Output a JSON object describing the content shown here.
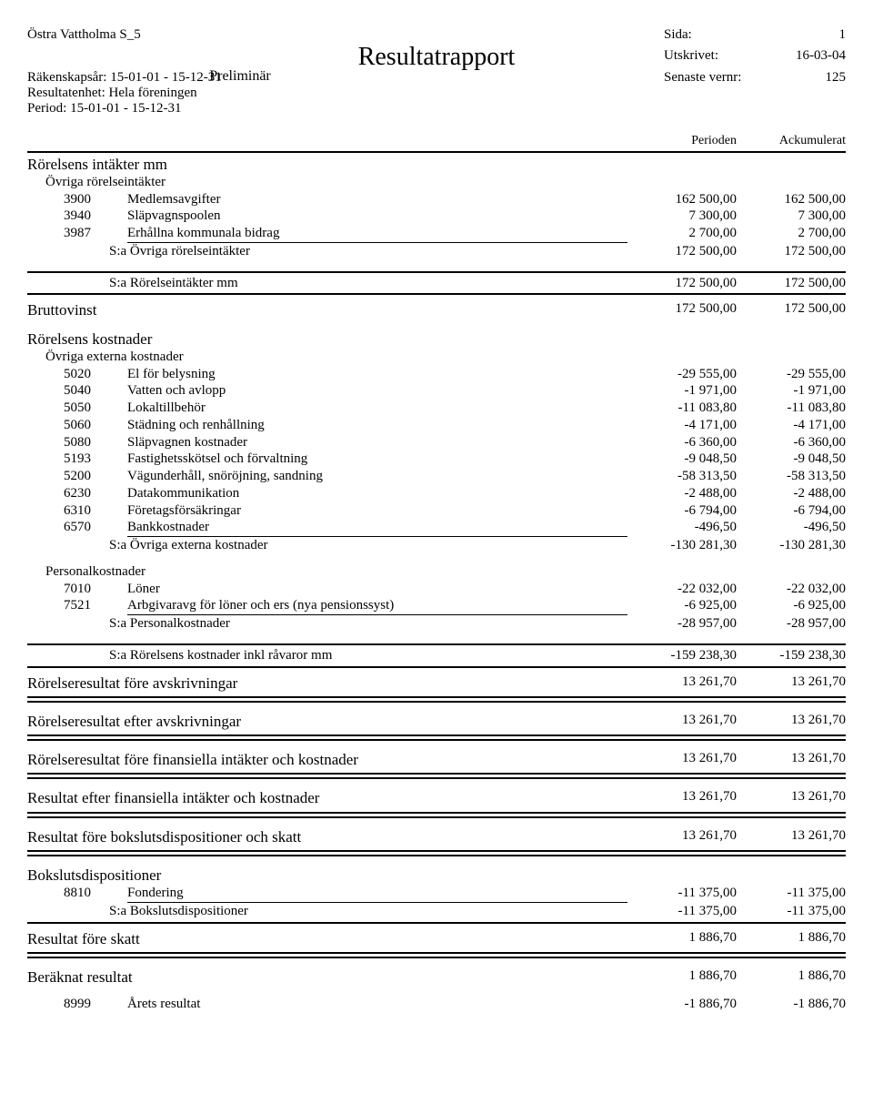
{
  "header": {
    "company": "Östra Vattholma S_5",
    "rakenskapsar_label": "Räkenskapsår: 15-01-01 - 15-12-31",
    "resultatenhet": "Resultatenhet: Hela föreningen",
    "period": "Period: 15-01-01 - 15-12-31",
    "sida_label": "Sida:",
    "sida_val": "1",
    "utskrivet_label": "Utskrivet:",
    "utskrivet_val": "16-03-04",
    "vernr_label": "Senaste vernr:",
    "vernr_val": "125",
    "title": "Resultatrapport",
    "subtitle": "Preliminär"
  },
  "colheads": {
    "period": "Perioden",
    "ack": "Ackumulerat"
  },
  "sections": {
    "intakter": {
      "title": "Rörelsens intäkter mm",
      "ovriga_title": "Övriga rörelseintäkter",
      "rows": [
        {
          "code": "3900",
          "desc": "Medlemsavgifter",
          "p": "162 500,00",
          "a": "162 500,00"
        },
        {
          "code": "3940",
          "desc": "Släpvagnspoolen",
          "p": "7 300,00",
          "a": "7 300,00"
        },
        {
          "code": "3987",
          "desc": "Erhållna kommunala bidrag",
          "p": "2 700,00",
          "a": "2 700,00"
        }
      ],
      "sum_ovriga": {
        "desc": "S:a Övriga rörelseintäkter",
        "p": "172 500,00",
        "a": "172 500,00"
      },
      "sum_intakter": {
        "desc": "S:a Rörelseintäkter mm",
        "p": "172 500,00",
        "a": "172 500,00"
      }
    },
    "bruttovinst": {
      "label": "Bruttovinst",
      "p": "172 500,00",
      "a": "172 500,00"
    },
    "kostnader": {
      "title": "Rörelsens kostnader",
      "ovriga_title": "Övriga externa kostnader",
      "rows": [
        {
          "code": "5020",
          "desc": "El för belysning",
          "p": "-29 555,00",
          "a": "-29 555,00"
        },
        {
          "code": "5040",
          "desc": "Vatten och avlopp",
          "p": "-1 971,00",
          "a": "-1 971,00"
        },
        {
          "code": "5050",
          "desc": "Lokaltillbehör",
          "p": "-11 083,80",
          "a": "-11 083,80"
        },
        {
          "code": "5060",
          "desc": "Städning och renhållning",
          "p": "-4 171,00",
          "a": "-4 171,00"
        },
        {
          "code": "5080",
          "desc": "Släpvagnen kostnader",
          "p": "-6 360,00",
          "a": "-6 360,00"
        },
        {
          "code": "5193",
          "desc": "Fastighetsskötsel och förvaltning",
          "p": "-9 048,50",
          "a": "-9 048,50"
        },
        {
          "code": "5200",
          "desc": "Vägunderhåll, snöröjning, sandning",
          "p": "-58 313,50",
          "a": "-58 313,50"
        },
        {
          "code": "6230",
          "desc": "Datakommunikation",
          "p": "-2 488,00",
          "a": "-2 488,00"
        },
        {
          "code": "6310",
          "desc": "Företagsförsäkringar",
          "p": "-6 794,00",
          "a": "-6 794,00"
        },
        {
          "code": "6570",
          "desc": "Bankkostnader",
          "p": "-496,50",
          "a": "-496,50"
        }
      ],
      "sum_ovriga": {
        "desc": "S:a Övriga externa kostnader",
        "p": "-130 281,30",
        "a": "-130 281,30"
      },
      "personal_title": "Personalkostnader",
      "personal_rows": [
        {
          "code": "7010",
          "desc": "Löner",
          "p": "-22 032,00",
          "a": "-22 032,00"
        },
        {
          "code": "7521",
          "desc": "Arbgivaravg för löner och ers (nya pensionssyst)",
          "p": "-6 925,00",
          "a": "-6 925,00"
        }
      ],
      "sum_personal": {
        "desc": "S:a Personalkostnader",
        "p": "-28 957,00",
        "a": "-28 957,00"
      },
      "sum_kostnader": {
        "desc": "S:a Rörelsens kostnader inkl råvaror mm",
        "p": "-159 238,30",
        "a": "-159 238,30"
      }
    },
    "resultat_lines": [
      {
        "label": "Rörelseresultat före avskrivningar",
        "p": "13 261,70",
        "a": "13 261,70"
      },
      {
        "label": "Rörelseresultat efter avskrivningar",
        "p": "13 261,70",
        "a": "13 261,70"
      },
      {
        "label": "Rörelseresultat före finansiella intäkter och kostnader",
        "p": "13 261,70",
        "a": "13 261,70"
      },
      {
        "label": "Resultat efter finansiella intäkter och kostnader",
        "p": "13 261,70",
        "a": "13 261,70"
      },
      {
        "label": "Resultat före bokslutsdispositioner och skatt",
        "p": "13 261,70",
        "a": "13 261,70"
      }
    ],
    "bokslut": {
      "title": "Bokslutsdispositioner",
      "rows": [
        {
          "code": "8810",
          "desc": "Fondering",
          "p": "-11 375,00",
          "a": "-11 375,00"
        }
      ],
      "sum": {
        "desc": "S:a Bokslutsdispositioner",
        "p": "-11 375,00",
        "a": "-11 375,00"
      }
    },
    "resultat_fore_skatt": {
      "label": "Resultat före skatt",
      "p": "1 886,70",
      "a": "1 886,70"
    },
    "beraknat": {
      "label": "Beräknat resultat",
      "p": "1 886,70",
      "a": "1 886,70"
    },
    "arets": {
      "code": "8999",
      "desc": "Årets resultat",
      "p": "-1 886,70",
      "a": "-1 886,70"
    }
  }
}
